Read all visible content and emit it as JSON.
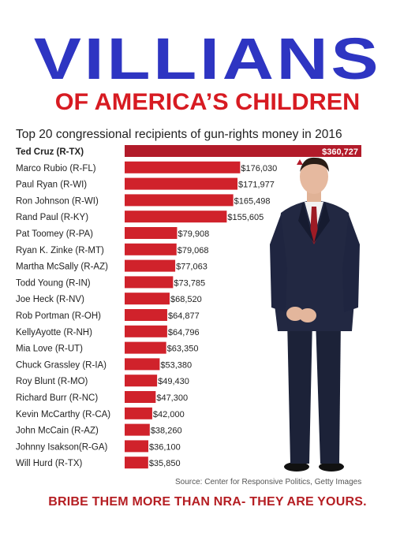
{
  "headline": "VILLIANS",
  "subheadline": "OF AMERICA’S CHILDREN",
  "footer": "BRIBE THEM MORE THAN NRA- THEY ARE YOURS.",
  "source": "Source: Center for Responsive Politics, Getty Images",
  "colors": {
    "headline": "#2e35c2",
    "subheadline": "#d71b22",
    "bar": "#d0222b",
    "bar_top": "#b21b2a",
    "footer": "#b51e23"
  },
  "chart_data": {
    "type": "bar",
    "orientation": "horizontal",
    "title": "Top 20 congressional recipients of gun-rights money in 2016",
    "categories": [
      "Ted Cruz (R-TX)",
      "Marco Rubio (R-FL)",
      "Paul Ryan (R-WI)",
      "Ron Johnson (R-WI)",
      "Rand Paul (R-KY)",
      "Pat Toomey (R-PA)",
      "Ryan K. Zinke (R-MT)",
      "Martha McSally (R-AZ)",
      "Todd Young (R-IN)",
      "Joe Heck (R-NV)",
      "Rob Portman (R-OH)",
      "KellyAyotte (R-NH)",
      "Mia Love (R-UT)",
      "Chuck Grassley (R-IA)",
      "Roy Blunt (R-MO)",
      "Richard Burr (R-NC)",
      "Kevin McCarthy (R-CA)",
      "John McCain (R-AZ)",
      "Johnny  Isakson(R-GA)",
      "Will Hurd (R-TX)"
    ],
    "values": [
      360727,
      176030,
      171977,
      165498,
      155605,
      79908,
      79068,
      77063,
      73785,
      68520,
      64877,
      64796,
      63350,
      53380,
      49430,
      47300,
      42000,
      38260,
      36100,
      35850
    ],
    "value_labels": [
      "$360,727",
      "$176,030",
      "$171,977",
      "$165,498",
      "$155,605",
      "$79,908",
      "$79,068",
      "$77,063",
      "$73,785",
      "$68,520",
      "$64,877",
      "$64,796",
      "$63,350",
      "$53,380",
      "$49,430",
      "$47,300",
      "$42,000",
      "$38,260",
      "$36,100",
      "$35,850"
    ],
    "xlim": [
      0,
      360727
    ],
    "grid": false,
    "legend": "none"
  }
}
